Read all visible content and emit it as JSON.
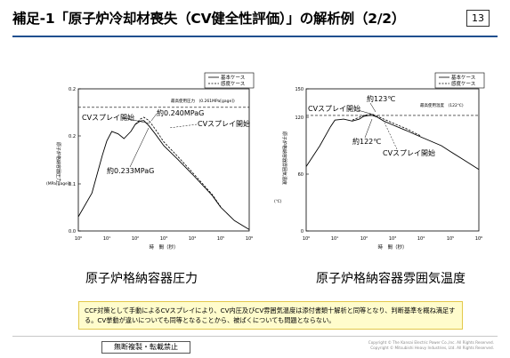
{
  "header": {
    "title": "補足-1「原子炉冷却材喪失（CV健全性評価）」の解析例（2/2）",
    "page_number": "13"
  },
  "charts": {
    "left": {
      "caption": "原子炉格納容器圧力",
      "legend": [
        "基本ケース",
        "感度ケース"
      ],
      "ylabel_lines": [
        "原子炉格納容器圧力",
        "(MPa[gage])"
      ],
      "xlabel": "時　間（秒）",
      "y_ticks": [
        "0.0",
        "0.1",
        "0.2",
        "0.2"
      ],
      "x_ticks": [
        "10⁰",
        "10¹",
        "10²",
        "10³",
        "10⁴",
        "10⁵",
        "10⁶"
      ],
      "limit_label": "最高使用圧力　(0.261MPa[gage])",
      "annotations": {
        "spray_start_1": "CVスプレイ開始",
        "peak_1": "約0.240MPaG",
        "spray_start_2": "CVスプレイ開始",
        "peak_2": "約0.233MPaG"
      }
    },
    "right": {
      "caption": "原子炉格納容器雰囲気温度",
      "legend": [
        "基本ケース",
        "感度ケース"
      ],
      "ylabel_lines": [
        "原子炉格納容器雰囲気温度",
        "(℃)"
      ],
      "xlabel": "時　間（秒）",
      "y_ticks": [
        "0",
        "60",
        "120",
        "150"
      ],
      "x_ticks": [
        "10⁰",
        "10¹",
        "10²",
        "10³",
        "10⁴",
        "10⁵",
        "10⁶"
      ],
      "limit_label": "最高使用温度　(122℃)",
      "annotations": {
        "spray_start_1": "CVスプレイ開始",
        "peak_1": "約123℃",
        "peak_2": "約122℃",
        "spray_start_2": "CVスプレイ開始"
      }
    }
  },
  "chart_data": [
    {
      "type": "line",
      "title": "原子炉格納容器圧力",
      "xlabel": "時間（秒）",
      "ylabel": "原子炉格納容器圧力 (MPa[gage])",
      "x_scale": "log",
      "xlim": [
        1,
        1000000
      ],
      "ylim": [
        0,
        0.3
      ],
      "grid": false,
      "legend_position": "top-right",
      "series": [
        {
          "name": "基本ケース",
          "x": [
            1,
            3,
            7,
            10,
            15,
            25,
            40,
            70,
            100,
            150,
            200,
            300,
            500,
            1000,
            3000,
            10000,
            50000,
            100000,
            300000,
            1000000
          ],
          "y": [
            0.03,
            0.08,
            0.16,
            0.19,
            0.21,
            0.205,
            0.195,
            0.21,
            0.225,
            0.232,
            0.233,
            0.222,
            0.205,
            0.18,
            0.152,
            0.12,
            0.075,
            0.05,
            0.022,
            0.003
          ]
        },
        {
          "name": "感度ケース",
          "x": [
            100,
            150,
            200,
            300,
            500,
            1000,
            3000,
            10000,
            50000,
            100000
          ],
          "y": [
            0.225,
            0.236,
            0.24,
            0.233,
            0.215,
            0.188,
            0.158,
            0.124,
            0.077,
            0.051
          ]
        }
      ],
      "reference_lines": [
        {
          "label": "最高使用圧力",
          "y": 0.261
        }
      ],
      "annotations": [
        "CVスプレイ開始",
        "約0.240MPaG",
        "CVスプレイ開始",
        "約0.233MPaG"
      ]
    },
    {
      "type": "line",
      "title": "原子炉格納容器雰囲気温度",
      "xlabel": "時間（秒）",
      "ylabel": "原子炉格納容器雰囲気温度 (℃)",
      "x_scale": "log",
      "xlim": [
        1,
        1000000
      ],
      "ylim": [
        0,
        150
      ],
      "grid": false,
      "legend_position": "top-right",
      "series": [
        {
          "name": "基本ケース",
          "x": [
            1,
            3,
            7,
            10,
            20,
            40,
            70,
            100,
            150,
            200,
            300,
            500,
            1000,
            3000,
            10000,
            50000,
            100000,
            300000,
            1000000
          ],
          "y": [
            68,
            90,
            110,
            117,
            118,
            116,
            118,
            121,
            122,
            122,
            120,
            116,
            112,
            106,
            99,
            90,
            84,
            75,
            65
          ]
        },
        {
          "name": "感度ケース",
          "x": [
            40,
            70,
            100,
            150,
            200,
            300,
            500,
            1000,
            3000,
            10000
          ],
          "y": [
            117,
            120,
            122,
            123,
            123,
            121,
            118,
            114,
            108,
            100
          ]
        }
      ],
      "reference_lines": [
        {
          "label": "最高使用温度",
          "y": 122
        }
      ],
      "annotations": [
        "CVスプレイ開始",
        "約123℃",
        "約122℃",
        "CVスプレイ開始"
      ]
    }
  ],
  "note": {
    "text": "CCF対策として手動によるCVスプレイにより、CV内圧及びCV雰囲気温度は添付書類十解析と同等となり、判断基準を概ね満足する。CV挙動が違いについても同等となることから、被ばくについても問題とならない。"
  },
  "footer": {
    "badge": "無断複製・転載禁止",
    "copyright_lines": [
      "Copyright © The Kansai Electric Power Co.,Inc. All Rights Reserved.",
      "Copyright © Mitsubishi Heavy Industries, Ltd. All Rights Reserved."
    ]
  }
}
